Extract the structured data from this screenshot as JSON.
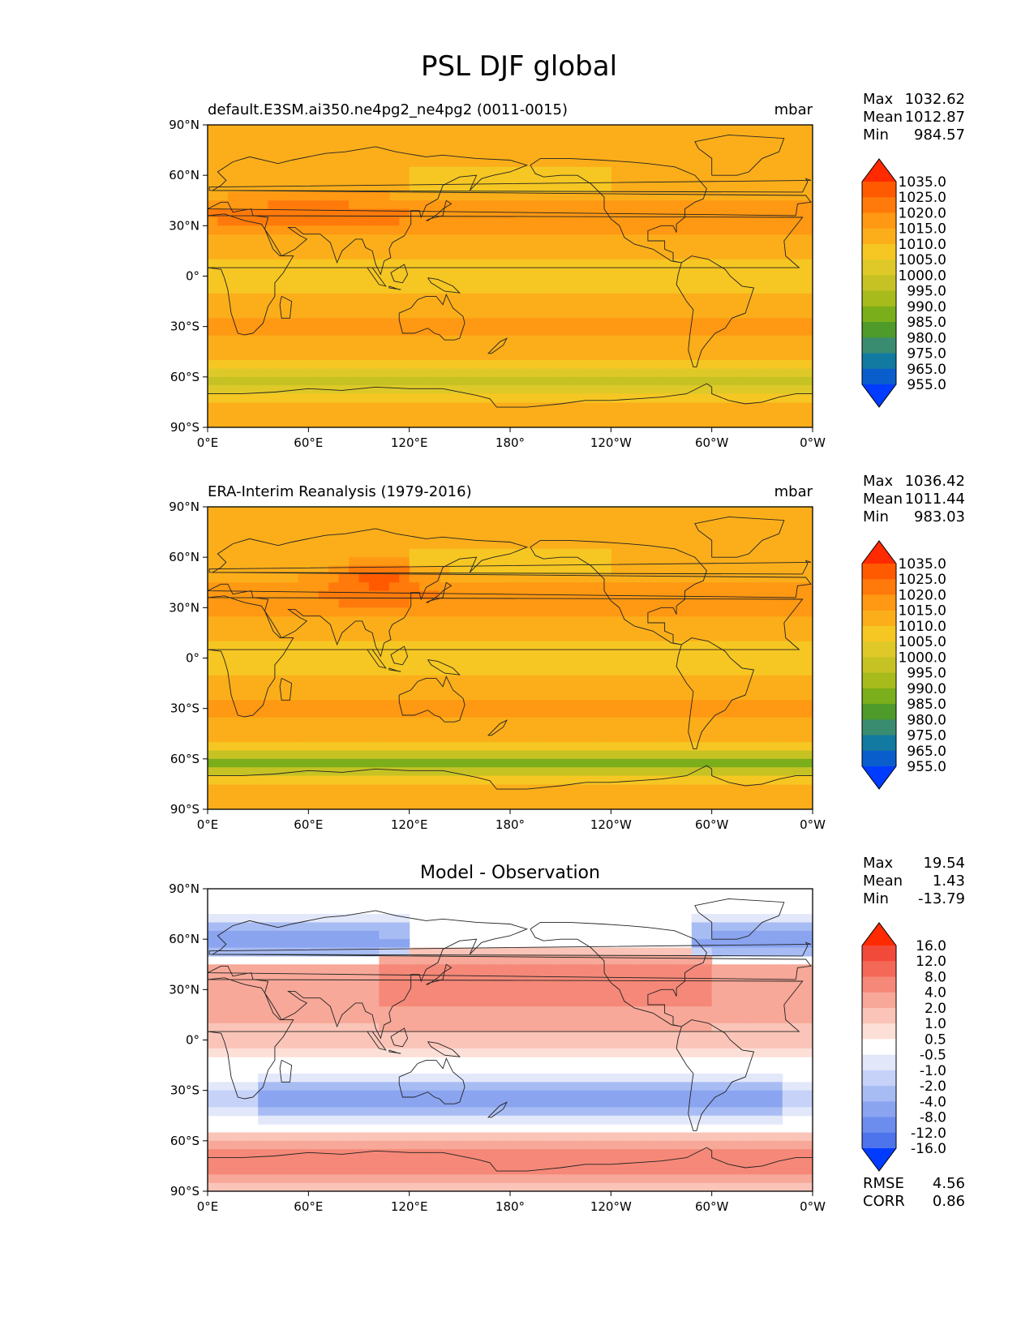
{
  "figure": {
    "title": "PSL DJF global"
  },
  "chart_data": [
    {
      "type": "heatmap",
      "title": "default.E3SM.ai350.ne4pg2_ne4pg2 (0011-0015)",
      "units": "mbar",
      "xlim": [
        0,
        360
      ],
      "ylim": [
        -90,
        90
      ],
      "x_ticks": [
        "0°E",
        "60°E",
        "120°E",
        "180°",
        "120°W",
        "60°W",
        "0°W"
      ],
      "y_ticks": [
        "90°N",
        "60°N",
        "30°N",
        "0°",
        "30°S",
        "60°S",
        "90°S"
      ],
      "stats": {
        "max_label": "Max",
        "max": "1032.62",
        "mean_label": "Mean",
        "mean": "1012.87",
        "min_label": "Min",
        "min": "984.57"
      },
      "colorbar": {
        "levels": [
          "1035.0",
          "1025.0",
          "1020.0",
          "1015.0",
          "1010.0",
          "1005.0",
          "1000.0",
          "995.0",
          "990.0",
          "985.0",
          "980.0",
          "975.0",
          "965.0",
          "955.0"
        ],
        "colors": [
          "#ff2a00",
          "#ff5a00",
          "#ff7a0a",
          "#ff9812",
          "#fbae1a",
          "#f6c722",
          "#dfc928",
          "#c6c224",
          "#a8bb1c",
          "#7aae1a",
          "#4e9a2a",
          "#3a8c70",
          "#127aa0",
          "#0a5ecc",
          "#003cff"
        ]
      }
    },
    {
      "type": "heatmap",
      "title": "ERA-Interim Reanalysis (1979-2016)",
      "units": "mbar",
      "xlim": [
        0,
        360
      ],
      "ylim": [
        -90,
        90
      ],
      "x_ticks": [
        "0°E",
        "60°E",
        "120°E",
        "180°",
        "120°W",
        "60°W",
        "0°W"
      ],
      "y_ticks": [
        "90°N",
        "60°N",
        "30°N",
        "0°",
        "30°S",
        "60°S",
        "90°S"
      ],
      "stats": {
        "max_label": "Max",
        "max": "1036.42",
        "mean_label": "Mean",
        "mean": "1011.44",
        "min_label": "Min",
        "min": "983.03"
      },
      "colorbar": {
        "levels": [
          "1035.0",
          "1025.0",
          "1020.0",
          "1015.0",
          "1010.0",
          "1005.0",
          "1000.0",
          "995.0",
          "990.0",
          "985.0",
          "980.0",
          "975.0",
          "965.0",
          "955.0"
        ],
        "colors": [
          "#ff2a00",
          "#ff5a00",
          "#ff7a0a",
          "#ff9812",
          "#fbae1a",
          "#f6c722",
          "#dfc928",
          "#c6c224",
          "#a8bb1c",
          "#7aae1a",
          "#4e9a2a",
          "#3a8c70",
          "#127aa0",
          "#0a5ecc",
          "#003cff"
        ]
      }
    },
    {
      "type": "heatmap",
      "title": "Model - Observation",
      "units": "",
      "xlim": [
        0,
        360
      ],
      "ylim": [
        -90,
        90
      ],
      "x_ticks": [
        "0°E",
        "60°E",
        "120°E",
        "180°",
        "120°W",
        "60°W",
        "0°W"
      ],
      "y_ticks": [
        "90°N",
        "60°N",
        "30°N",
        "0°",
        "30°S",
        "60°S",
        "90°S"
      ],
      "stats": {
        "max_label": "Max",
        "max": "19.54",
        "mean_label": "Mean",
        "mean": "1.43",
        "min_label": "Min",
        "min": "-13.79"
      },
      "colorbar": {
        "levels": [
          "16.0",
          "12.0",
          "8.0",
          "4.0",
          "2.0",
          "1.0",
          "0.5",
          "-0.5",
          "-1.0",
          "-2.0",
          "-4.0",
          "-8.0",
          "-12.0",
          "-16.0"
        ],
        "colors": [
          "#ff2a00",
          "#f24a3a",
          "#f46858",
          "#f58878",
          "#f7a898",
          "#fac4b8",
          "#fce0d8",
          "#ffffff",
          "#e2e8fa",
          "#c6d2f8",
          "#a8bcf4",
          "#8aa4f0",
          "#6c8cee",
          "#4e74ec",
          "#003cff"
        ]
      },
      "metrics": {
        "rmse_label": "RMSE",
        "rmse": "4.56",
        "corr_label": "CORR",
        "corr": "0.86"
      }
    }
  ]
}
